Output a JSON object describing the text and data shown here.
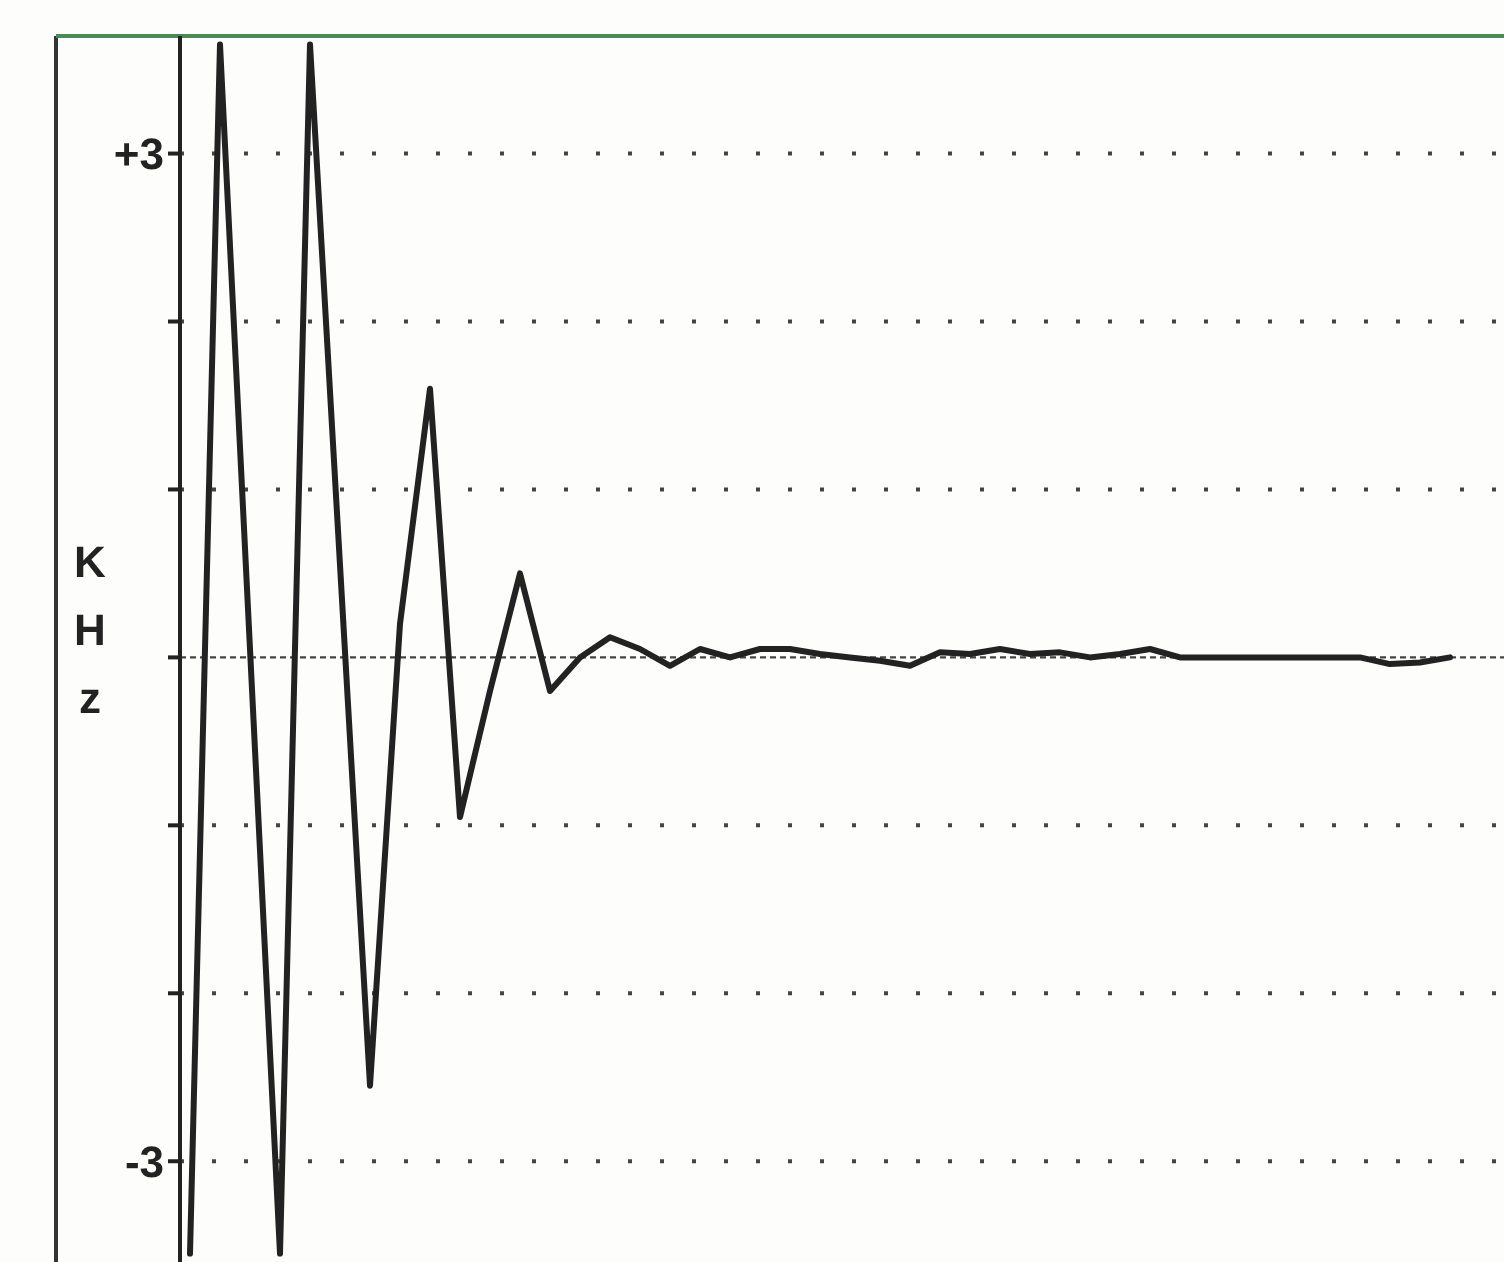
{
  "chart_data": {
    "type": "line",
    "ylabel": "KHz",
    "categories": [
      null,
      null,
      null,
      null,
      null,
      null,
      null,
      null,
      null,
      null,
      null,
      null,
      null,
      null,
      null,
      null,
      null,
      null,
      null,
      null,
      null,
      null,
      null,
      null,
      null,
      null,
      null,
      null,
      null,
      null,
      null,
      null,
      null,
      null,
      null,
      null,
      null,
      null,
      null,
      null,
      null,
      null,
      null
    ],
    "series": [
      {
        "color": "#222222",
        "values": [
          -3.55,
          3.65,
          0.05,
          -3.55,
          3.65,
          0.55,
          -2.55,
          0.2,
          1.6,
          -0.95,
          -0.2,
          0.5,
          -0.2,
          0,
          0.12,
          0.05,
          -0.05,
          0.05,
          0,
          0.05,
          0.05,
          0.02,
          0,
          -0.02,
          -0.05,
          0.03,
          0.02,
          0.05,
          0.02,
          0.03,
          0,
          0.02,
          0.05,
          0,
          0,
          0,
          0,
          0,
          0,
          0,
          -0.04,
          -0.03,
          0
        ]
      }
    ],
    "ylim": [
      -3.6,
      3.7
    ],
    "yticks": [
      {
        "value": 3,
        "label": "+3"
      },
      {
        "value": 2,
        "label": null
      },
      {
        "value": 1,
        "label": null
      },
      {
        "value": 0,
        "label": null
      },
      {
        "value": -1,
        "label": null
      },
      {
        "value": -2,
        "label": null
      },
      {
        "value": -3,
        "label": "-3"
      }
    ],
    "ref_lines": [
      {
        "axis": "y",
        "value": 0,
        "line_style": "dashed",
        "color": "#444444"
      }
    ],
    "grid": "y",
    "tick_labels": "y",
    "marker": "none",
    "line_style": "solid"
  }
}
